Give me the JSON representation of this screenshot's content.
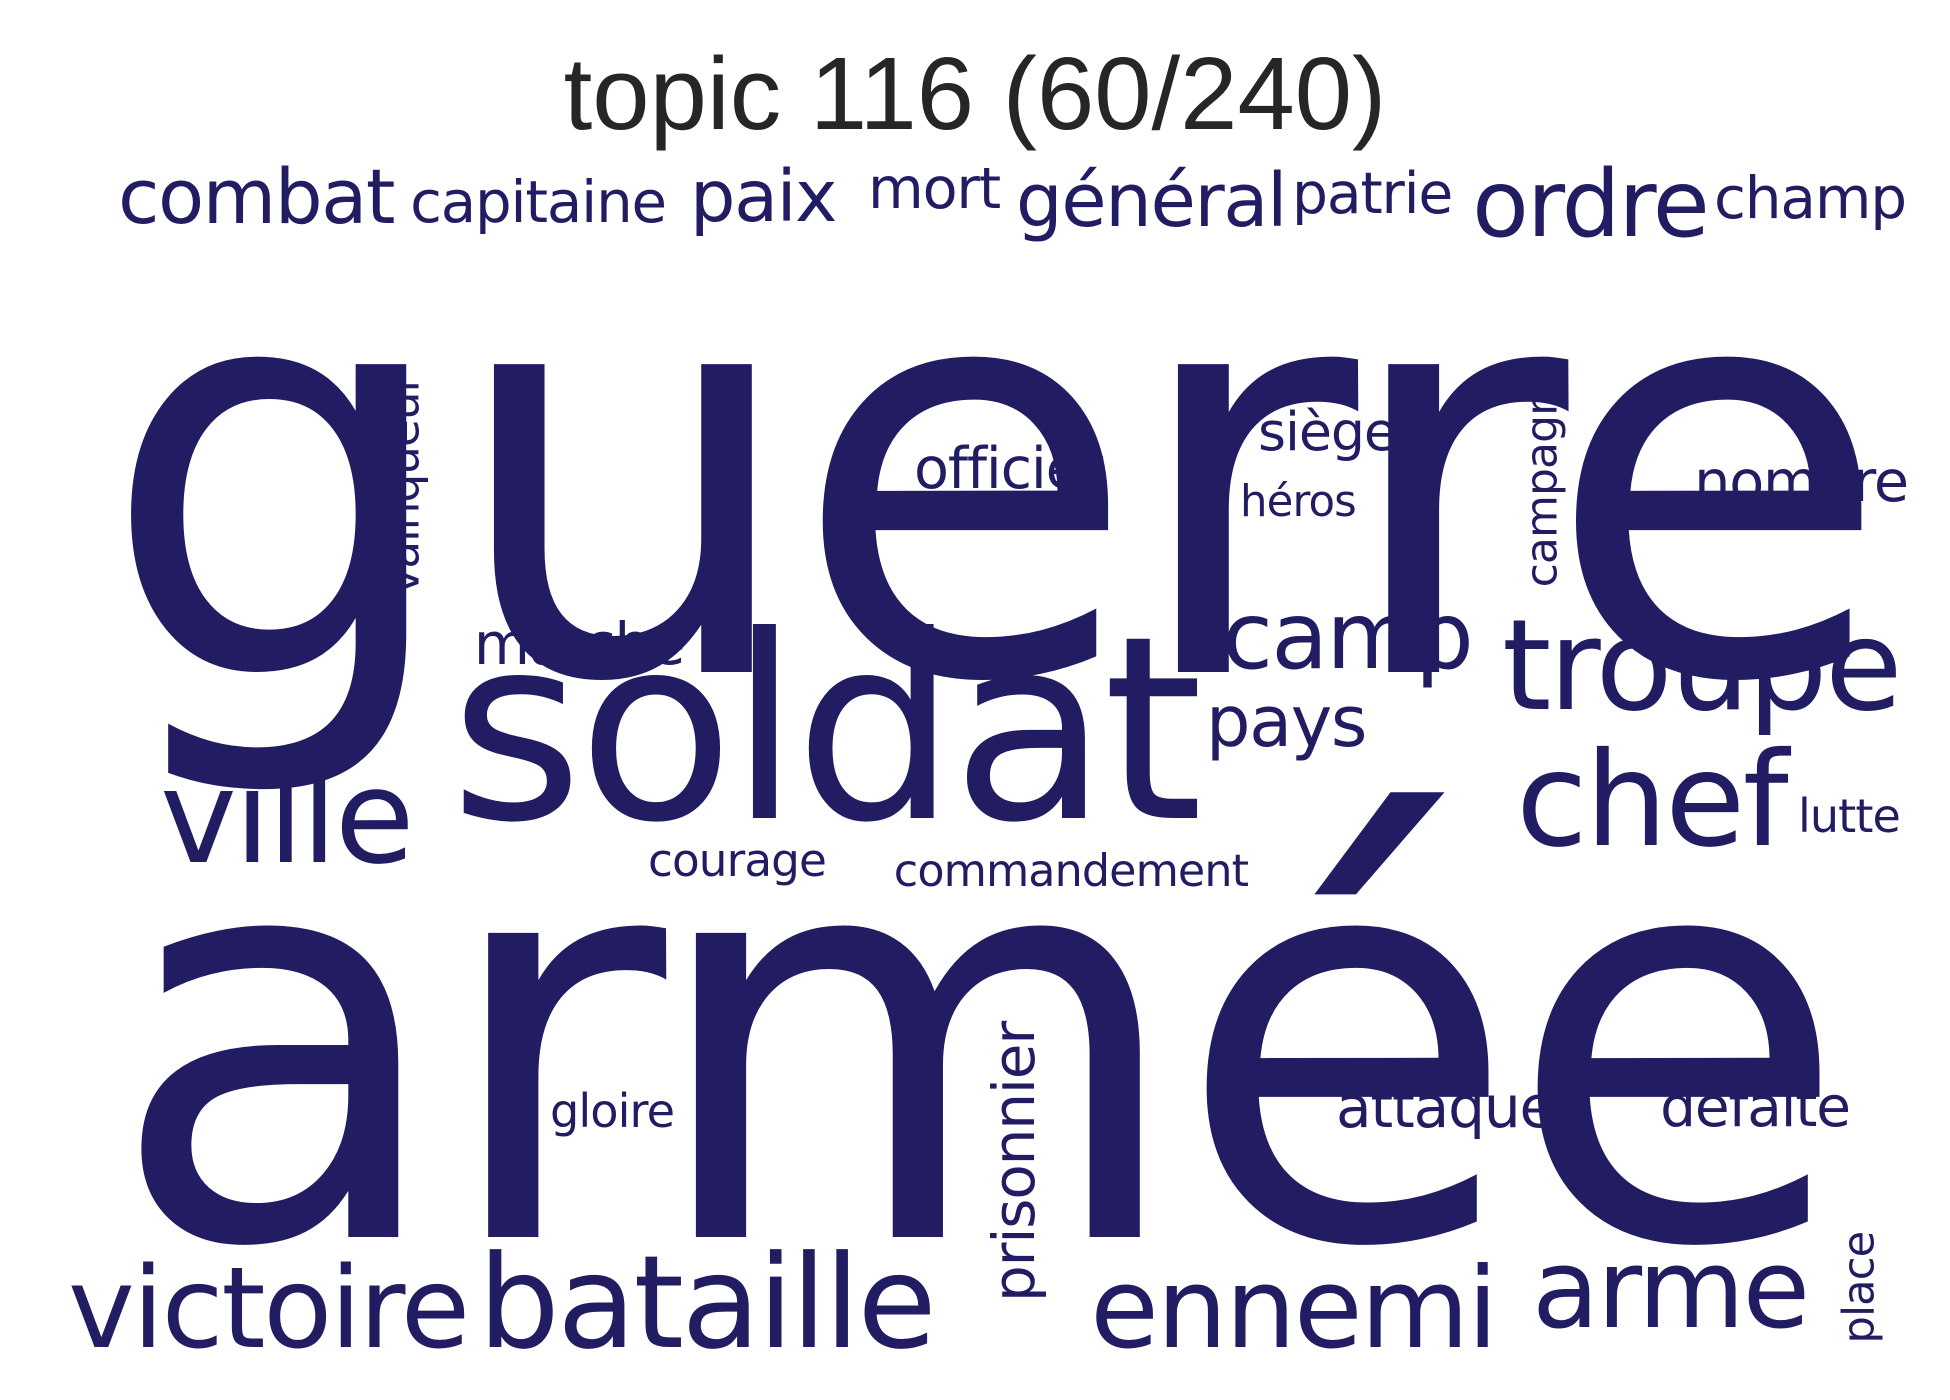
{
  "title": "topic 116 (60/240)",
  "colors": {
    "word": "#221d63",
    "title": "#262626",
    "background": "#ffffff"
  },
  "words": [
    {
      "text": "combat"
    },
    {
      "text": "capitaine"
    },
    {
      "text": "paix"
    },
    {
      "text": "mort"
    },
    {
      "text": "général"
    },
    {
      "text": "patrie"
    },
    {
      "text": "ordre"
    },
    {
      "text": "champ"
    },
    {
      "text": "guerre"
    },
    {
      "text": "vainqueur"
    },
    {
      "text": "officier"
    },
    {
      "text": "siège"
    },
    {
      "text": "héros"
    },
    {
      "text": "campagne"
    },
    {
      "text": "nombre"
    },
    {
      "text": "marche"
    },
    {
      "text": "camp"
    },
    {
      "text": "troupe"
    },
    {
      "text": "soldat"
    },
    {
      "text": "pays"
    },
    {
      "text": "ville"
    },
    {
      "text": "chef"
    },
    {
      "text": "lutte"
    },
    {
      "text": "courage"
    },
    {
      "text": "commandement"
    },
    {
      "text": "armée"
    },
    {
      "text": "gloire"
    },
    {
      "text": "prisonnier"
    },
    {
      "text": "attaque"
    },
    {
      "text": "défaite"
    },
    {
      "text": "victoire"
    },
    {
      "text": "bataille"
    },
    {
      "text": "ennemi"
    },
    {
      "text": "arme"
    },
    {
      "text": "place"
    }
  ]
}
